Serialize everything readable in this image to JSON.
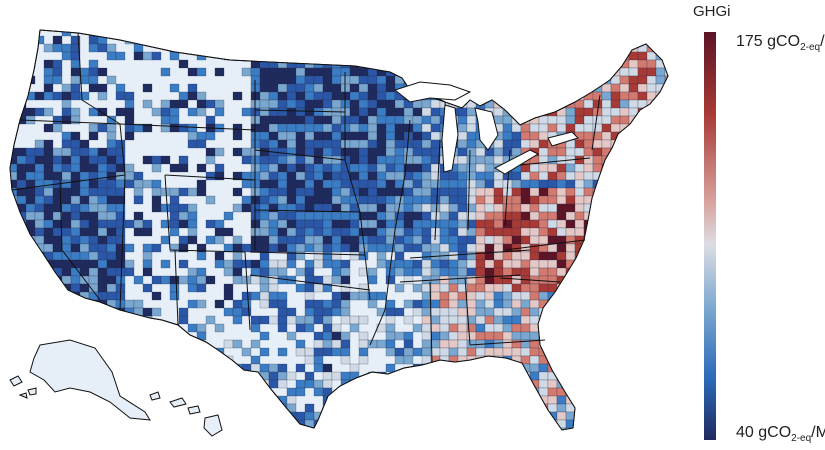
{
  "legend": {
    "title": "GHGi",
    "max_value": "175",
    "max_unit_main": "gCO",
    "max_unit_sub": "2-eq",
    "max_unit_tail": "/",
    "min_value": "40",
    "min_unit_main": "gCO",
    "min_unit_sub": "2-eq",
    "min_unit_tail": "/M",
    "gradient_colors": [
      "#5c1426",
      "#a83a36",
      "#d9a4a0",
      "#dcdde3",
      "#7aa7cf",
      "#2b6ab8",
      "#1f2a5e"
    ]
  },
  "map": {
    "land_color": "#e6eef8",
    "border_color": "#111111",
    "scale_colors": [
      "#1f2a5e",
      "#2b57a8",
      "#3b7dc4",
      "#7aa7cf",
      "#cfdae6",
      "#e3c8c6",
      "#d27a70",
      "#a83a36",
      "#5c1426"
    ]
  }
}
